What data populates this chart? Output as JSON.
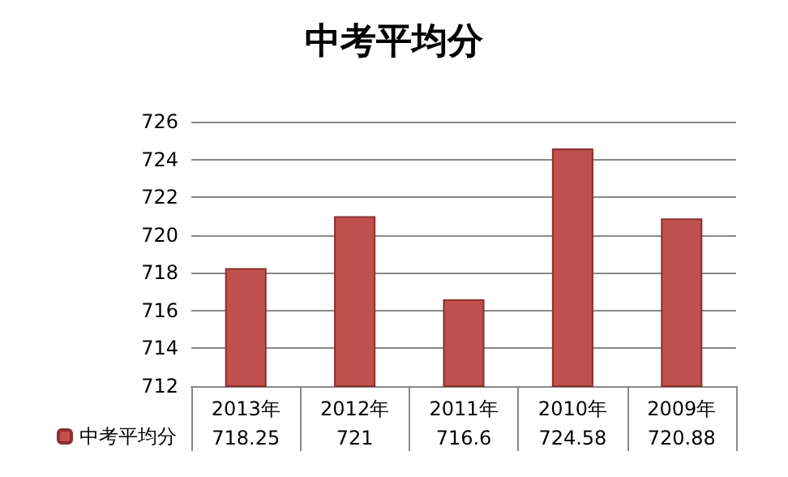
{
  "chart_data": {
    "type": "bar",
    "title": "中考平均分",
    "categories": [
      "2013年",
      "2012年",
      "2011年",
      "2010年",
      "2009年"
    ],
    "series": [
      {
        "name": "中考平均分",
        "color": "#c0504d",
        "values": [
          718.25,
          721,
          716.6,
          724.58,
          720.88
        ]
      }
    ],
    "ylim": [
      712,
      726
    ],
    "yticks": [
      712,
      714,
      716,
      718,
      720,
      722,
      724,
      726
    ],
    "grid": "y",
    "legend": "bottom left",
    "data_labels": true
  }
}
